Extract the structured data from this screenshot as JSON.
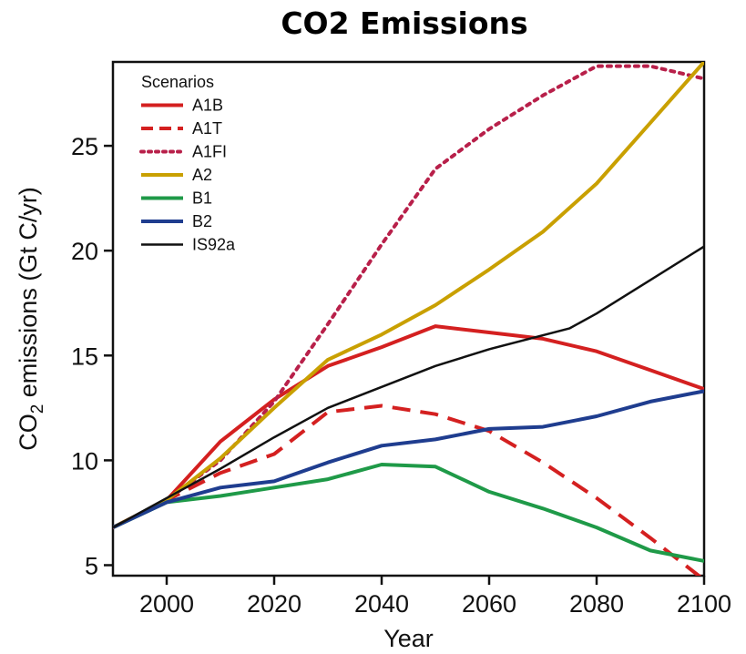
{
  "title": "CO2 Emissions",
  "chart_data": {
    "type": "line",
    "title": "CO2 Emissions",
    "xlabel": "Year",
    "ylabel_parts": [
      "CO",
      "2",
      " emissions (Gt C/yr)"
    ],
    "xlim": [
      1990,
      2100
    ],
    "ylim": [
      4.5,
      29
    ],
    "xticks": [
      2000,
      2020,
      2040,
      2060,
      2080,
      2100
    ],
    "yticks": [
      5,
      10,
      15,
      20,
      25
    ],
    "grid": false,
    "legend": {
      "title": "Scenarios",
      "position": "top-left"
    },
    "series": [
      {
        "name": "A1B",
        "color": "#d42020",
        "style": "solid",
        "width": 4,
        "points": [
          [
            1990,
            6.8
          ],
          [
            2000,
            8.1
          ],
          [
            2010,
            10.9
          ],
          [
            2020,
            12.9
          ],
          [
            2030,
            14.5
          ],
          [
            2040,
            15.4
          ],
          [
            2050,
            16.4
          ],
          [
            2060,
            16.1
          ],
          [
            2070,
            15.8
          ],
          [
            2080,
            15.2
          ],
          [
            2090,
            14.3
          ],
          [
            2100,
            13.4
          ]
        ]
      },
      {
        "name": "A1T",
        "color": "#d42020",
        "style": "dashed",
        "width": 4,
        "points": [
          [
            1990,
            6.8
          ],
          [
            2000,
            8.1
          ],
          [
            2010,
            9.4
          ],
          [
            2020,
            10.3
          ],
          [
            2030,
            12.3
          ],
          [
            2040,
            12.6
          ],
          [
            2050,
            12.2
          ],
          [
            2060,
            11.4
          ],
          [
            2070,
            9.9
          ],
          [
            2080,
            8.2
          ],
          [
            2090,
            6.3
          ],
          [
            2100,
            4.3
          ]
        ]
      },
      {
        "name": "A1FI",
        "color": "#b8204a",
        "style": "dotted",
        "width": 4,
        "points": [
          [
            1990,
            6.8
          ],
          [
            2000,
            8.1
          ],
          [
            2010,
            10.0
          ],
          [
            2020,
            12.8
          ],
          [
            2030,
            16.5
          ],
          [
            2040,
            20.3
          ],
          [
            2050,
            23.9
          ],
          [
            2060,
            25.8
          ],
          [
            2070,
            27.4
          ],
          [
            2080,
            28.8
          ],
          [
            2090,
            28.8
          ],
          [
            2100,
            28.2
          ]
        ]
      },
      {
        "name": "A2",
        "color": "#c9a000",
        "style": "solid",
        "width": 4,
        "points": [
          [
            1990,
            6.8
          ],
          [
            2000,
            8.1
          ],
          [
            2010,
            10.1
          ],
          [
            2020,
            12.5
          ],
          [
            2030,
            14.8
          ],
          [
            2040,
            16.0
          ],
          [
            2050,
            17.4
          ],
          [
            2060,
            19.1
          ],
          [
            2070,
            20.9
          ],
          [
            2080,
            23.2
          ],
          [
            2090,
            26.1
          ],
          [
            2100,
            29.0
          ]
        ]
      },
      {
        "name": "B1",
        "color": "#1f9a48",
        "style": "solid",
        "width": 4,
        "points": [
          [
            1990,
            6.8
          ],
          [
            2000,
            8.0
          ],
          [
            2010,
            8.3
          ],
          [
            2020,
            8.7
          ],
          [
            2030,
            9.1
          ],
          [
            2040,
            9.8
          ],
          [
            2050,
            9.7
          ],
          [
            2060,
            8.5
          ],
          [
            2070,
            7.7
          ],
          [
            2080,
            6.8
          ],
          [
            2090,
            5.7
          ],
          [
            2100,
            5.2
          ]
        ]
      },
      {
        "name": "B2",
        "color": "#1f3d8f",
        "style": "solid",
        "width": 4,
        "points": [
          [
            1990,
            6.8
          ],
          [
            2000,
            8.0
          ],
          [
            2010,
            8.7
          ],
          [
            2020,
            9.0
          ],
          [
            2030,
            9.9
          ],
          [
            2040,
            10.7
          ],
          [
            2050,
            11.0
          ],
          [
            2060,
            11.5
          ],
          [
            2070,
            11.6
          ],
          [
            2080,
            12.1
          ],
          [
            2090,
            12.8
          ],
          [
            2100,
            13.3
          ]
        ]
      },
      {
        "name": "IS92a",
        "color": "#111111",
        "style": "solid",
        "width": 2.5,
        "points": [
          [
            1990,
            6.8
          ],
          [
            2000,
            8.2
          ],
          [
            2010,
            9.6
          ],
          [
            2020,
            11.1
          ],
          [
            2030,
            12.5
          ],
          [
            2040,
            13.5
          ],
          [
            2050,
            14.5
          ],
          [
            2060,
            15.3
          ],
          [
            2075,
            16.3
          ],
          [
            2080,
            17.0
          ],
          [
            2090,
            18.6
          ],
          [
            2100,
            20.2
          ]
        ]
      }
    ]
  }
}
